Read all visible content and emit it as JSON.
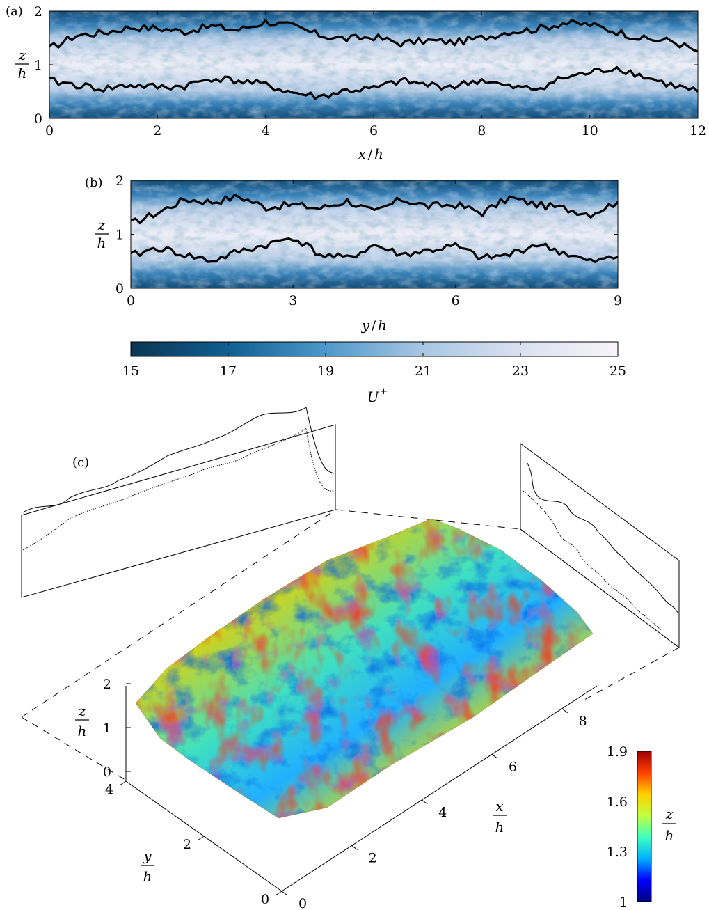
{
  "panels": {
    "a": {
      "label": "(a)"
    },
    "b": {
      "label": "(b)"
    },
    "c": {
      "label": "(c)"
    }
  },
  "colormaps": {
    "velocity": [
      "#0b3552",
      "#0f5f93",
      "#4e98cb",
      "#a9c7e3",
      "#d9e1ef",
      "#f7f4f9"
    ],
    "height": [
      "#00007f",
      "#0000ff",
      "#00b0ff",
      "#40ffbf",
      "#c0ff40",
      "#ffd000",
      "#ff4000",
      "#a00000"
    ]
  },
  "chart_data": [
    {
      "id": "a",
      "type": "heatmap",
      "xlabel_var": "x",
      "xlabel_den": "h",
      "ylabel_num": "z",
      "ylabel_den": "h",
      "xlim": [
        0,
        12
      ],
      "ylim": [
        0,
        2
      ],
      "xticks": [
        "0",
        "2",
        "4",
        "6",
        "8",
        "10",
        "12"
      ],
      "yticks": [
        "0",
        "1",
        "2"
      ],
      "upper_interface": [
        [
          0,
          1.3
        ],
        [
          0.5,
          1.55
        ],
        [
          1,
          1.6
        ],
        [
          1.5,
          1.7
        ],
        [
          2,
          1.68
        ],
        [
          2.5,
          1.62
        ],
        [
          3,
          1.72
        ],
        [
          3.5,
          1.65
        ],
        [
          4,
          1.8
        ],
        [
          4.5,
          1.72
        ],
        [
          5,
          1.55
        ],
        [
          5.5,
          1.48
        ],
        [
          6,
          1.52
        ],
        [
          6.5,
          1.4
        ],
        [
          7,
          1.45
        ],
        [
          7.5,
          1.42
        ],
        [
          8,
          1.5
        ],
        [
          8.5,
          1.62
        ],
        [
          9,
          1.66
        ],
        [
          9.5,
          1.78
        ],
        [
          10,
          1.75
        ],
        [
          10.5,
          1.62
        ],
        [
          11,
          1.48
        ],
        [
          11.5,
          1.45
        ],
        [
          12,
          1.25
        ]
      ],
      "lower_interface": [
        [
          0,
          0.7
        ],
        [
          0.5,
          0.62
        ],
        [
          1,
          0.55
        ],
        [
          1.5,
          0.62
        ],
        [
          2,
          0.58
        ],
        [
          2.5,
          0.6
        ],
        [
          3,
          0.75
        ],
        [
          3.5,
          0.7
        ],
        [
          4,
          0.62
        ],
        [
          4.5,
          0.48
        ],
        [
          5,
          0.4
        ],
        [
          5.5,
          0.52
        ],
        [
          6,
          0.55
        ],
        [
          6.5,
          0.7
        ],
        [
          7,
          0.62
        ],
        [
          7.5,
          0.6
        ],
        [
          8,
          0.72
        ],
        [
          8.5,
          0.58
        ],
        [
          9,
          0.55
        ],
        [
          9.5,
          0.75
        ],
        [
          10,
          0.85
        ],
        [
          10.5,
          0.95
        ],
        [
          11,
          0.78
        ],
        [
          11.5,
          0.62
        ],
        [
          12,
          0.5
        ]
      ]
    },
    {
      "id": "b",
      "type": "heatmap",
      "xlabel_var": "y",
      "xlabel_den": "h",
      "ylabel_num": "z",
      "ylabel_den": "h",
      "xlim": [
        0,
        9
      ],
      "ylim": [
        0,
        2
      ],
      "xticks": [
        "0",
        "3",
        "6",
        "9"
      ],
      "yticks": [
        "0",
        "1",
        "2"
      ],
      "upper_interface": [
        [
          0,
          1.2
        ],
        [
          0.5,
          1.4
        ],
        [
          1,
          1.65
        ],
        [
          1.5,
          1.6
        ],
        [
          2,
          1.7
        ],
        [
          2.5,
          1.5
        ],
        [
          3,
          1.55
        ],
        [
          3.5,
          1.48
        ],
        [
          4,
          1.62
        ],
        [
          4.5,
          1.4
        ],
        [
          5,
          1.65
        ],
        [
          5.5,
          1.52
        ],
        [
          6,
          1.55
        ],
        [
          6.5,
          1.4
        ],
        [
          7,
          1.68
        ],
        [
          7.5,
          1.55
        ],
        [
          8,
          1.48
        ],
        [
          8.5,
          1.38
        ],
        [
          9,
          1.6
        ]
      ],
      "lower_interface": [
        [
          0,
          0.6
        ],
        [
          0.5,
          0.75
        ],
        [
          1,
          0.62
        ],
        [
          1.5,
          0.5
        ],
        [
          2,
          0.68
        ],
        [
          2.5,
          0.8
        ],
        [
          3,
          0.95
        ],
        [
          3.5,
          0.62
        ],
        [
          4,
          0.55
        ],
        [
          4.5,
          0.8
        ],
        [
          5,
          0.62
        ],
        [
          5.5,
          0.7
        ],
        [
          6,
          0.78
        ],
        [
          6.5,
          0.55
        ],
        [
          7,
          0.62
        ],
        [
          7.5,
          0.82
        ],
        [
          8,
          0.66
        ],
        [
          8.5,
          0.48
        ],
        [
          9,
          0.58
        ]
      ]
    },
    {
      "id": "colorbar-velocity",
      "type": "colorbar",
      "label_base": "U",
      "label_sup": "+",
      "range": [
        15,
        25
      ],
      "ticks": [
        "15",
        "17",
        "19",
        "21",
        "23",
        "25"
      ]
    },
    {
      "id": "c",
      "type": "surface",
      "xlabel_num": "x",
      "xlabel_den": "h",
      "ylabel_num": "y",
      "ylabel_den": "h",
      "zlabel_num": "z",
      "zlabel_den": "h",
      "xlim": [
        0,
        9
      ],
      "ylim": [
        0,
        4
      ],
      "zlim": [
        0,
        2
      ],
      "xticks": [
        "0",
        "2",
        "4",
        "6",
        "8"
      ],
      "yticks": [
        "0",
        "2",
        "4"
      ],
      "zticks": [
        "0",
        "1",
        "2"
      ]
    },
    {
      "id": "colorbar-height",
      "type": "colorbar",
      "label_num": "z",
      "label_den": "h",
      "range": [
        1,
        1.9
      ],
      "ticks": [
        "1",
        "1.3",
        "1.6",
        "1.9"
      ]
    }
  ]
}
